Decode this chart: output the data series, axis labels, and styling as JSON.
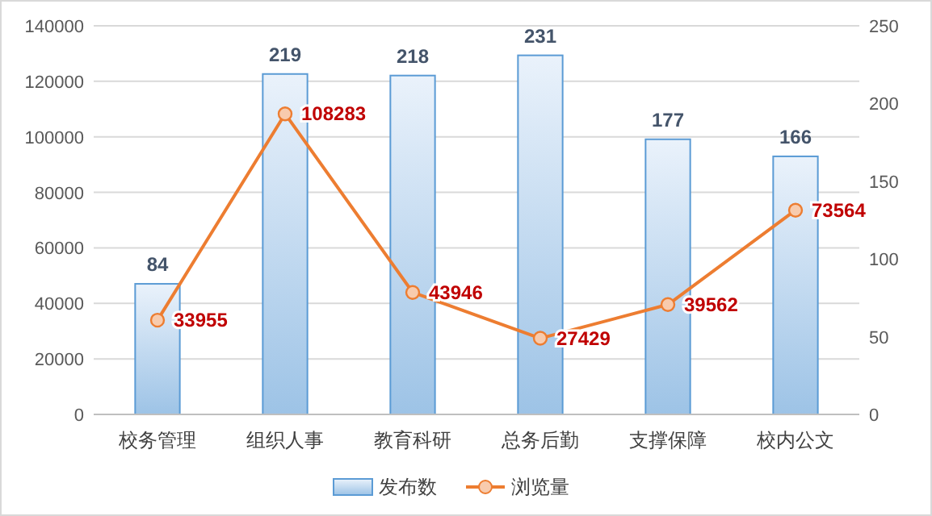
{
  "chart_data": {
    "type": "bar",
    "categories": [
      "校务管理",
      "组织人事",
      "教育科研",
      "总务后勤",
      "支撑保障",
      "校内公文"
    ],
    "series": [
      {
        "name": "发布数",
        "axis": "y2",
        "color": "#5b9bd5",
        "values": [
          84,
          219,
          218,
          231,
          177,
          166
        ]
      },
      {
        "name": "浏览量",
        "type": "line",
        "color": "#ed7d31",
        "values": [
          33955,
          108283,
          43946,
          27429,
          39562,
          73564
        ]
      }
    ],
    "ylim": [
      0,
      140000
    ],
    "yticks": [
      0,
      20000,
      40000,
      60000,
      80000,
      100000,
      120000,
      140000
    ],
    "y2lim": [
      0,
      250
    ],
    "y2ticks": [
      0,
      50,
      100,
      150,
      200,
      250
    ],
    "grid": "y",
    "legend": "bottom",
    "marker": "circle",
    "data_labels": true
  }
}
